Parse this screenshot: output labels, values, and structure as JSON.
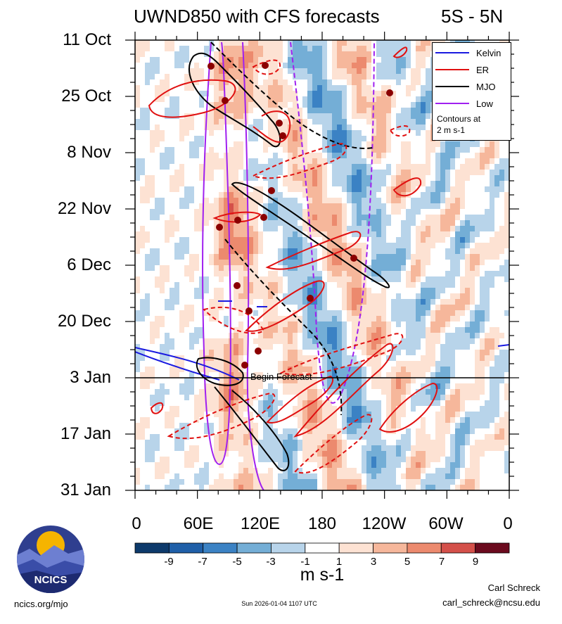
{
  "title": "UWND850 with CFS forecasts",
  "band": "5S - 5N",
  "forecast_marker": "Begin Forecast",
  "legend": {
    "items": [
      {
        "label": "Kelvin",
        "color": "#1a1ae0",
        "style": "solid"
      },
      {
        "label": "ER",
        "color": "#e01010",
        "style": "solid"
      },
      {
        "label": "MJO",
        "color": "#000000",
        "style": "solid"
      },
      {
        "label": "Low",
        "color": "#a020f0",
        "style": "solid"
      }
    ],
    "note_line1": "Contours at",
    "note_line2": "2 m s-1"
  },
  "colorbar": {
    "units": "m s-1",
    "ticks": [
      "-9",
      "-7",
      "-5",
      "-3",
      "-1",
      "1",
      "3",
      "5",
      "7",
      "9"
    ],
    "colors": [
      "#0d3a6b",
      "#1f5fa8",
      "#3b82c4",
      "#74aed6",
      "#b8d4ea",
      "#e3eff7",
      "#ffffff",
      "#fde2d3",
      "#f6b79b",
      "#ec8a6e",
      "#d4504a",
      "#a5182d",
      "#6b0a1e"
    ]
  },
  "credits": {
    "author": "Carl Schreck",
    "email": "carl_schreck@ncsu.edu",
    "url": "ncics.org/mjo",
    "timestamp": "Sun 2026-01-04 1107 UTC",
    "logo_text": "NCICS"
  },
  "chart_data": {
    "type": "heatmap",
    "title": "UWND850 with CFS forecasts",
    "subtitle": "5S - 5N",
    "x_ticks": [
      "0",
      "60E",
      "120E",
      "180",
      "120W",
      "60W",
      "0"
    ],
    "x_values": [
      0,
      60,
      120,
      180,
      240,
      300,
      360
    ],
    "xlim": [
      0,
      360
    ],
    "y_ticks": [
      "11 Oct",
      "25 Oct",
      "8 Nov",
      "22 Nov",
      "6 Dec",
      "20 Dec",
      "3 Jan",
      "17 Jan",
      "31 Jan"
    ],
    "ylim_days": [
      0,
      112
    ],
    "forecast_start_day": 84,
    "units": "m s-1",
    "levels": [
      -9,
      -7,
      -5,
      -3,
      -1,
      1,
      3,
      5,
      7,
      9
    ],
    "contour_interval": "2 m s-1",
    "contour_series": [
      "Kelvin",
      "ER",
      "MJO",
      "Low"
    ]
  }
}
